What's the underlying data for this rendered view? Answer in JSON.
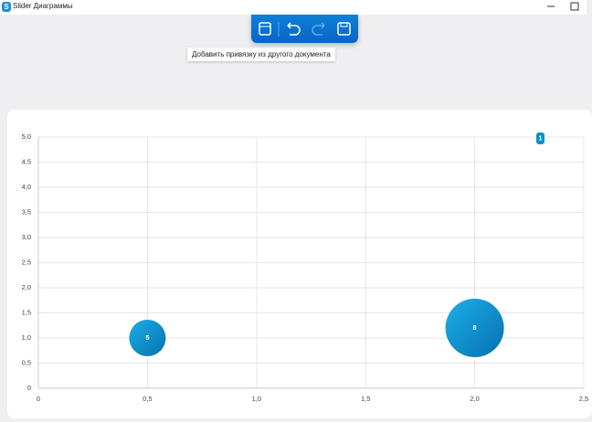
{
  "window": {
    "title": "Slider Диаграммы"
  },
  "toolbar": {
    "tooltip": "Добавить привязку из другого документа"
  },
  "chart_data": {
    "type": "bubble",
    "badge": "1",
    "xlim": [
      0,
      2.5
    ],
    "xticks": [
      0,
      {
        "value": 0.5,
        "label": "0,5"
      },
      {
        "value": 1,
        "label": "1,0"
      },
      {
        "value": 1.5,
        "label": "1,5"
      },
      {
        "value": 2,
        "label": "2,0"
      },
      {
        "value": 2.5,
        "label": "2,5"
      }
    ],
    "ylim": [
      0,
      5
    ],
    "yticks": [
      0,
      {
        "value": 0.5,
        "label": "0,5"
      },
      {
        "value": 1,
        "label": "1,0"
      },
      {
        "value": 1.5,
        "label": "1,5"
      },
      {
        "value": 2,
        "label": "2,0"
      },
      {
        "value": 2.5,
        "label": "2,5"
      },
      {
        "value": 3,
        "label": "3,0"
      },
      {
        "value": 3.5,
        "label": "3,5"
      },
      {
        "value": 4,
        "label": "4,0"
      },
      {
        "value": 4.5,
        "label": "4,5"
      },
      {
        "value": 5,
        "label": "5,0"
      }
    ],
    "grid": true,
    "series": [
      {
        "color": "#0a8fd0",
        "x": [
          0.5,
          2.0
        ],
        "values": [
          1.0,
          1.2
        ],
        "sizes": [
          5,
          8
        ]
      }
    ]
  }
}
